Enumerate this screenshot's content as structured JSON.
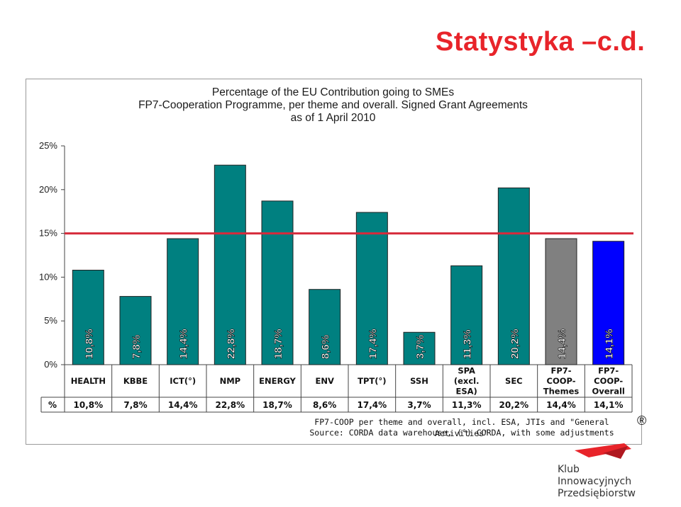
{
  "slide": {
    "title": "Statystyka –c.d."
  },
  "chart_title_lines": [
    "Percentage of the EU Contribution going to SMEs",
    "FP7-Cooperation Programme, per theme and overall. Signed Grant Agreements",
    "as of 1 April 2010"
  ],
  "footnote_lines": [
    "FP7-COOP per theme and overall, incl. ESA, JTIs and \"General Activities\"",
    "Source: CORDA data warehouse, (°) CORDA, with some adjustments"
  ],
  "logo": {
    "mark": "®",
    "lines": [
      "Klub",
      "Innowacyjnych",
      "Przedsiębiorstw"
    ]
  },
  "colors": {
    "teal": "#008080",
    "grey": "#808080",
    "blue": "#0000ff",
    "reference": "#d62b3c",
    "title_red": "#e8242a"
  },
  "chart_data": {
    "type": "bar",
    "categories": [
      [
        "HEALTH"
      ],
      [
        "KBBE"
      ],
      [
        "ICT(°)"
      ],
      [
        "NMP"
      ],
      [
        "ENERGY"
      ],
      [
        "ENV"
      ],
      [
        "TPT(°)"
      ],
      [
        "SSH"
      ],
      [
        "SPA",
        "(excl.",
        "ESA)"
      ],
      [
        "SEC"
      ],
      [
        "FP7-",
        "COOP-",
        "Themes"
      ],
      [
        "FP7-",
        "COOP-",
        "Overall"
      ]
    ],
    "values": [
      10.8,
      7.8,
      14.4,
      22.8,
      18.7,
      8.6,
      17.4,
      3.7,
      11.3,
      20.2,
      14.4,
      14.1
    ],
    "data_labels": [
      "10,8%",
      "7,8%",
      "14,4%",
      "22,8%",
      "18,7%",
      "8,6%",
      "17,4%",
      "3,7%",
      "11,3%",
      "20,2%",
      "14,4%",
      "14,1%"
    ],
    "bar_colors": [
      "teal",
      "teal",
      "teal",
      "teal",
      "teal",
      "teal",
      "teal",
      "teal",
      "teal",
      "teal",
      "grey",
      "blue"
    ],
    "ylim": [
      0,
      25
    ],
    "yticks": [
      "0%",
      "5%",
      "10%",
      "15%",
      "20%",
      "25%"
    ],
    "reference_line": 15,
    "table_row_label": "%",
    "grid": false
  }
}
